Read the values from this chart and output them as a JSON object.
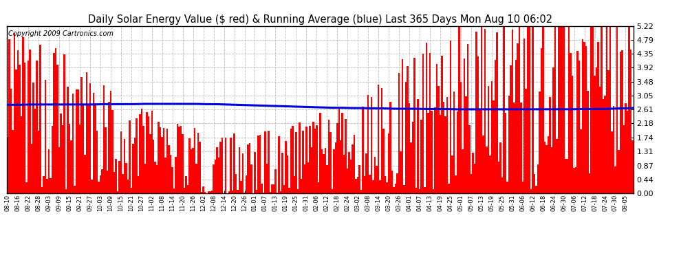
{
  "title": "Daily Solar Energy Value ($ red) & Running Average (blue) Last 365 Days Mon Aug 10 06:02",
  "copyright": "Copyright 2009 Cartronics.com",
  "yticks": [
    0.0,
    0.44,
    0.87,
    1.31,
    1.74,
    2.18,
    2.61,
    3.05,
    3.48,
    3.92,
    4.35,
    4.79,
    5.22
  ],
  "ymax": 5.22,
  "bar_color": "#ff0000",
  "avg_color": "#0000dd",
  "bg_color": "#ffffff",
  "plot_bg": "#ffffff",
  "grid_color": "#bbbbbb",
  "title_fontsize": 10.5,
  "copyright_fontsize": 7,
  "xtick_fontsize": 6.0,
  "ytick_fontsize": 8,
  "avg_linewidth": 2.2,
  "x_labels": [
    "08-10",
    "08-16",
    "08-22",
    "08-28",
    "09-03",
    "09-09",
    "09-15",
    "09-21",
    "09-27",
    "10-03",
    "10-09",
    "10-15",
    "10-21",
    "10-27",
    "11-02",
    "11-08",
    "11-14",
    "11-20",
    "11-26",
    "12-02",
    "12-08",
    "12-14",
    "12-20",
    "12-26",
    "01-01",
    "01-07",
    "01-13",
    "01-19",
    "01-25",
    "01-31",
    "02-06",
    "02-12",
    "02-18",
    "02-24",
    "03-02",
    "03-08",
    "03-14",
    "03-20",
    "03-26",
    "04-01",
    "04-07",
    "04-13",
    "04-19",
    "04-25",
    "05-01",
    "05-07",
    "05-13",
    "05-19",
    "05-25",
    "05-31",
    "06-06",
    "06-12",
    "06-18",
    "06-24",
    "06-30",
    "07-06",
    "07-12",
    "07-18",
    "07-24",
    "07-30",
    "08-05"
  ],
  "avg_values": [
    2.76,
    2.76,
    2.77,
    2.77,
    2.77,
    2.77,
    2.77,
    2.77,
    2.77,
    2.78,
    2.78,
    2.78,
    2.78,
    2.79,
    2.79,
    2.79,
    2.79,
    2.79,
    2.79,
    2.78,
    2.78,
    2.77,
    2.76,
    2.75,
    2.74,
    2.73,
    2.72,
    2.71,
    2.7,
    2.69,
    2.68,
    2.67,
    2.67,
    2.66,
    2.66,
    2.65,
    2.65,
    2.64,
    2.64,
    2.64,
    2.63,
    2.63,
    2.63,
    2.62,
    2.62,
    2.62,
    2.62,
    2.62,
    2.62,
    2.62,
    2.62,
    2.62,
    2.62,
    2.62,
    2.62,
    2.63,
    2.63,
    2.63,
    2.64,
    2.65,
    2.66
  ],
  "bar_seed": 1234,
  "n_days": 365
}
